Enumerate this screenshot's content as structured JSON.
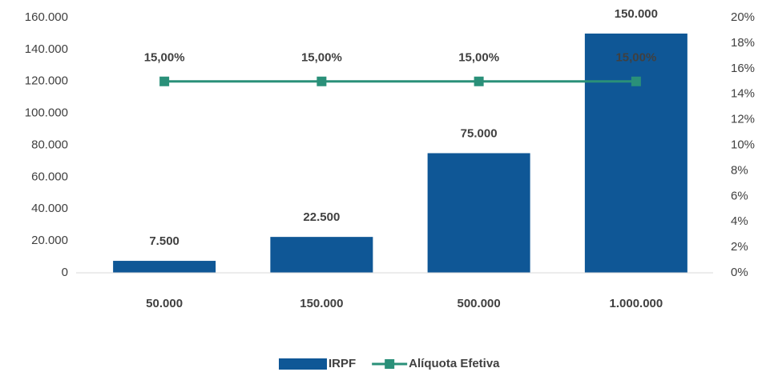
{
  "chart_data": {
    "type": "bar",
    "categories": [
      "50.000",
      "150.000",
      "500.000",
      "1.000.000"
    ],
    "series": [
      {
        "name": "IRPF",
        "type": "bar",
        "color": "#0f5796",
        "values": [
          7500,
          22500,
          75000,
          150000
        ],
        "value_labels": [
          "7.500",
          "22.500",
          "75.000",
          "150.000"
        ]
      },
      {
        "name": "Alíquota Efetiva",
        "type": "line",
        "axis": "y2",
        "color": "#2a9079",
        "values": [
          15,
          15,
          15,
          15
        ],
        "value_labels": [
          "15,00%",
          "15,00%",
          "15,00%",
          "15,00%"
        ]
      }
    ],
    "ylim": [
      0,
      160000
    ],
    "yticks": [
      0,
      {
        "value": 20000,
        "label": "20.000"
      },
      {
        "value": 40000,
        "label": "40.000"
      },
      {
        "value": 60000,
        "label": "60.000"
      },
      {
        "value": 80000,
        "label": "80.000"
      },
      {
        "value": 100000,
        "label": "100.000"
      },
      {
        "value": 120000,
        "label": "120.000"
      },
      {
        "value": 140000,
        "label": "140.000"
      },
      {
        "value": 160000,
        "label": "160.000"
      }
    ],
    "y2lim": [
      0,
      20
    ],
    "y2ticks": [
      {
        "value": 0,
        "label": "0%"
      },
      {
        "value": 2,
        "label": "2%"
      },
      {
        "value": 4,
        "label": "4%"
      },
      {
        "value": 6,
        "label": "6%"
      },
      {
        "value": 8,
        "label": "8%"
      },
      {
        "value": 10,
        "label": "10%"
      },
      {
        "value": 12,
        "label": "12%"
      },
      {
        "value": 14,
        "label": "14%"
      },
      {
        "value": 16,
        "label": "16%"
      },
      {
        "value": 18,
        "label": "18%"
      },
      {
        "value": 20,
        "label": "20%"
      }
    ],
    "legend": "bottom"
  }
}
